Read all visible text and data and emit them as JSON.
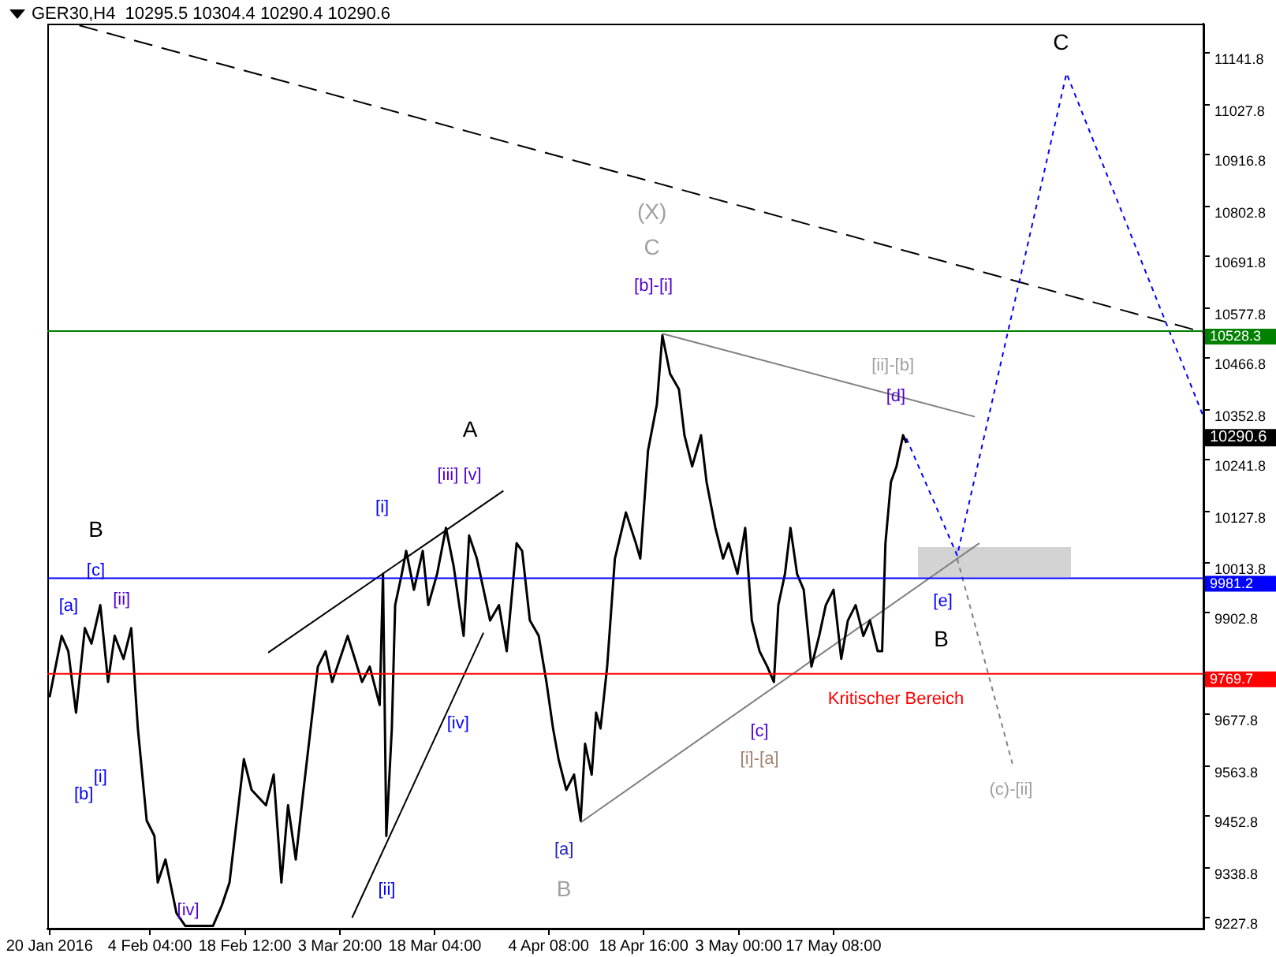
{
  "chart_data": {
    "type": "line",
    "title": "GER30,H4  10295.5 10304.4 10290.4 10290.6",
    "xlim": [
      "2016-01-19T16:00",
      "2016-07-12T04:00"
    ],
    "xticks": [
      {
        "value": "2016-01-20T00:00",
        "label": "20 Jan 2016"
      },
      {
        "value": "2016-02-04T04:00",
        "label": "4 Feb 04:00"
      },
      {
        "value": "2016-02-18T12:00",
        "label": "18 Feb 12:00"
      },
      {
        "value": "2016-03-03T20:00",
        "label": "3 Mar 20:00"
      },
      {
        "value": "2016-03-18T04:00",
        "label": "18 Mar 04:00"
      },
      {
        "value": "2016-04-04T08:00",
        "label": "4 Apr 08:00"
      },
      {
        "value": "2016-04-18T16:00",
        "label": "18 Apr 16:00"
      },
      {
        "value": "2016-05-03T00:00",
        "label": "3 May 00:00"
      },
      {
        "value": "2016-05-17T08:00",
        "label": "17 May 08:00"
      }
    ],
    "ylim": [
      9204,
      11207
    ],
    "yticks": [
      9227.8,
      9338.8,
      9452.8,
      9563.8,
      9677.8,
      9902.8,
      10013.8,
      10127.8,
      10241.8,
      10352.8,
      10466.8,
      10577.8,
      10691.8,
      10802.8,
      10916.8,
      11027.8,
      11141.8
    ],
    "grid": false,
    "legend": false,
    "marker": "none",
    "series": [
      {
        "color": "#000000",
        "line_style": "solid",
        "x": [
          "2016-01-20T00:00",
          "2016-01-21T20:00",
          "2016-01-22T20:00",
          "2016-01-24T00:00",
          "2016-01-25T08:00",
          "2016-01-26T08:00",
          "2016-01-27T16:00",
          "2016-01-28T20:00",
          "2016-01-29T20:00",
          "2016-01-31T04:00",
          "2016-02-01T08:00",
          "2016-02-02T08:00",
          "2016-02-03T16:00",
          "2016-02-04T20:00",
          "2016-02-05T08:00",
          "2016-02-06T12:00",
          "2016-02-08T04:00",
          "2016-02-09T12:00",
          "2016-02-11T12:00",
          "2016-02-13T16:00",
          "2016-02-15T00:00",
          "2016-02-16T04:00",
          "2016-02-18T08:00",
          "2016-02-19T12:00",
          "2016-02-21T16:00",
          "2016-02-22T20:00",
          "2016-02-24T00:00",
          "2016-02-25T00:00",
          "2016-02-26T04:00",
          "2016-02-27T08:00",
          "2016-02-29T12:00",
          "2016-03-01T16:00",
          "2016-03-02T16:00",
          "2016-03-05T00:00",
          "2016-03-07T04:00",
          "2016-03-08T08:00",
          "2016-03-09T20:00",
          "2016-03-10T08:00",
          "2016-03-10T20:00",
          "2016-03-11T16:00",
          "2016-03-12T04:00",
          "2016-03-13T04:00",
          "2016-03-13T20:00",
          "2016-03-15T00:00",
          "2016-03-16T08:00",
          "2016-03-17T04:00",
          "2016-03-18T12:00",
          "2016-03-19T20:00",
          "2016-03-21T00:00",
          "2016-03-22T12:00",
          "2016-03-23T08:00",
          "2016-03-24T12:00",
          "2016-03-25T00:00",
          "2016-03-26T12:00",
          "2016-03-27T20:00",
          "2016-03-29T00:00",
          "2016-03-30T12:00",
          "2016-03-31T08:00",
          "2016-04-01T12:00",
          "2016-04-02T20:00",
          "2016-04-04T00:00",
          "2016-04-05T00:00",
          "2016-04-05T20:00",
          "2016-04-07T00:00",
          "2016-04-08T04:00",
          "2016-04-09T04:00",
          "2016-04-09T20:00",
          "2016-04-10T20:00",
          "2016-04-11T12:00",
          "2016-04-12T04:00",
          "2016-04-13T04:00",
          "2016-04-14T08:00",
          "2016-04-16T00:00",
          "2016-04-17T12:00",
          "2016-04-18T04:00",
          "2016-04-19T08:00",
          "2016-04-20T16:00",
          "2016-04-21T12:00",
          "2016-04-22T16:00",
          "2016-04-24T00:00",
          "2016-04-24T20:00",
          "2016-04-26T00:00",
          "2016-04-27T08:00",
          "2016-04-28T04:00",
          "2016-04-29T12:00",
          "2016-04-30T16:00",
          "2016-05-01T12:00",
          "2016-05-02T20:00",
          "2016-05-04T00:00",
          "2016-05-05T00:00",
          "2016-05-06T04:00",
          "2016-05-07T08:00",
          "2016-05-08T08:00",
          "2016-05-09T00:00",
          "2016-05-10T00:00",
          "2016-05-10T20:00",
          "2016-05-11T20:00",
          "2016-05-12T20:00",
          "2016-05-14T00:00",
          "2016-05-15T04:00",
          "2016-05-16T04:00",
          "2016-05-17T08:00",
          "2016-05-18T12:00",
          "2016-05-19T12:00",
          "2016-05-20T16:00",
          "2016-05-21T20:00",
          "2016-05-22T20:00",
          "2016-05-24T00:00",
          "2016-05-24T16:00",
          "2016-05-25T04:00",
          "2016-05-26T00:00",
          "2016-05-26T20:00",
          "2016-05-27T20:00",
          "2016-05-28T08:00"
        ],
        "values": [
          9716,
          9852,
          9818,
          9682,
          9869,
          9835,
          9920,
          9750,
          9852,
          9801,
          9869,
          9647,
          9443,
          9409,
          9306,
          9357,
          9238,
          9210,
          9210,
          9210,
          9255,
          9306,
          9579,
          9511,
          9477,
          9545,
          9306,
          9477,
          9357,
          9511,
          9784,
          9818,
          9750,
          9852,
          9750,
          9784,
          9699,
          9989,
          9409,
          9647,
          9920,
          9989,
          10040,
          9954,
          10040,
          9920,
          9989,
          10091,
          10006,
          9852,
          10074,
          10023,
          9989,
          9886,
          9920,
          9818,
          10057,
          10040,
          9886,
          9852,
          9750,
          9647,
          9579,
          9511,
          9545,
          9443,
          9613,
          9545,
          9682,
          9647,
          9784,
          10023,
          10125,
          10057,
          10023,
          10262,
          10364,
          10517,
          10432,
          10398,
          10296,
          10227,
          10296,
          10193,
          10091,
          10023,
          10057,
          9989,
          10091,
          9886,
          9818,
          9784,
          9750,
          9920,
          9989,
          10091,
          9989,
          9954,
          9784,
          9852,
          9920,
          9954,
          9801,
          9886,
          9920,
          9852,
          9886,
          9818,
          9818,
          10057,
          10193,
          10227,
          10296,
          10279
        ]
      },
      {
        "color": "#0000ff",
        "line_style": "dotted",
        "x": [
          "2016-05-28T08:00",
          "2016-06-05T00:00",
          "2016-06-21T12:00",
          "2016-07-12T04:00"
        ],
        "values": [
          10289,
          10030,
          11097,
          10337
        ]
      },
      {
        "color": "#808080",
        "line_style": "dotted",
        "x": [
          "2016-06-05T00:00",
          "2016-06-13T08:00"
        ],
        "values": [
          10023,
          9569
        ]
      },
      {
        "color": "#000000",
        "line_style": "dashed",
        "x": [
          "2016-01-24T12:00",
          "2016-07-12T04:00"
        ],
        "values": [
          11203,
          10524
        ]
      },
      {
        "color": "#808080",
        "line_style": "solid",
        "x": [
          "2016-04-21T12:00",
          "2016-06-07T16:00"
        ],
        "values": [
          10521,
          10337
        ]
      },
      {
        "color": "#808080",
        "line_style": "solid",
        "x": [
          "2016-04-09T04:00",
          "2016-06-08T08:00"
        ],
        "values": [
          9439,
          10057
        ]
      },
      {
        "color": "#000000",
        "line_style": "solid",
        "x": [
          "2016-02-22T00:00",
          "2016-03-28T12:00"
        ],
        "values": [
          9815,
          10173
        ]
      },
      {
        "color": "#000000",
        "line_style": "solid",
        "x": [
          "2016-03-05T16:00",
          "2016-03-25T12:00"
        ],
        "values": [
          9228,
          9859
        ]
      }
    ],
    "ref_lines": [
      {
        "axis": "y",
        "value": 10528.3,
        "label": "10528.3",
        "color": "#008000"
      },
      {
        "axis": "y",
        "value": 9981.2,
        "label": "9981.2",
        "color": "#0000ff"
      },
      {
        "axis": "y",
        "value": 9769.7,
        "label": "9769.7",
        "color": "#ff0000"
      }
    ],
    "annotations": [
      "10290.6",
      "(X)",
      "C",
      "[b]-[i]",
      "C",
      "[ii]-[b]",
      "[d]",
      "A",
      "[iii] [v]",
      "[i]",
      "B",
      "[c]",
      "[a]",
      "[ii]",
      "[i]",
      "[b]",
      "[iv]",
      "[ii]",
      "[iv]",
      "[a]",
      "B",
      "[c]",
      "[i]-[a]",
      "Kritischer Bereich",
      "[e]",
      "B",
      "(c)-[ii]"
    ]
  }
}
